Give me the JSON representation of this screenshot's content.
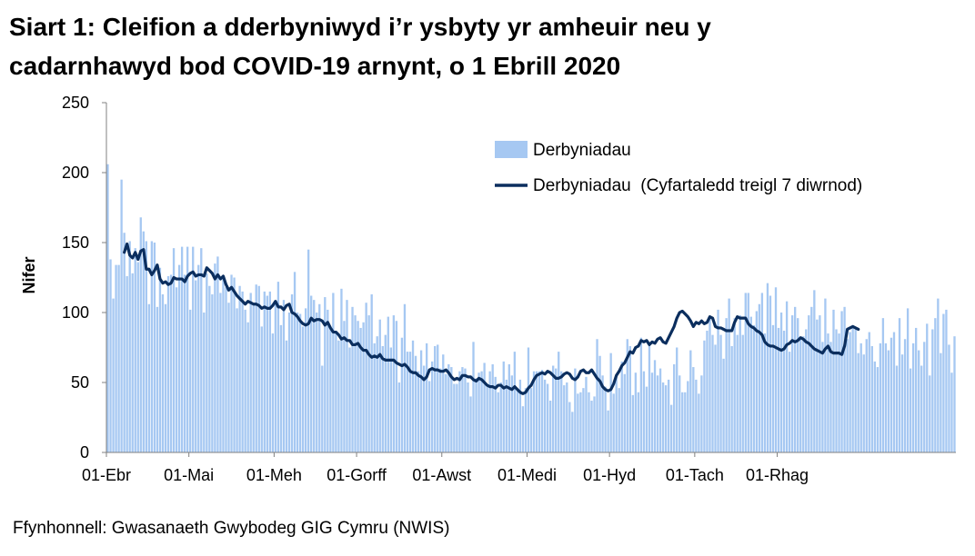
{
  "title": {
    "line1": "Siart 1: Cleifion a dderbyniwyd i’r ysbyty yr amheuir neu y",
    "line2": "cadarnhawyd bod COVID-19 arnynt, o 1 Ebrill 2020"
  },
  "source": "Ffynhonnell: Gwasanaeth Gwybodeg GIG Cymru (NWIS)",
  "chart_data": {
    "type": "bar",
    "title": "Siart 1: Cleifion a dderbyniwyd i’r ysbyty yr amheuir neu y cadarnhawyd bod COVID-19 arnynt, o 1 Ebrill 2020",
    "xlabel": "",
    "ylabel": "Nifer",
    "ylim": [
      0,
      250
    ],
    "yticks": [
      0,
      50,
      100,
      150,
      200,
      250
    ],
    "x_start": "2020-04-01",
    "x_end": "2020-12-29",
    "xtick_labels": [
      {
        "date": "2020-04-01",
        "label": "01-Ebr"
      },
      {
        "date": "2020-05-01",
        "label": "01-Mai"
      },
      {
        "date": "2020-06-01",
        "label": "01-Meh"
      },
      {
        "date": "2020-07-01",
        "label": "01-Gorff"
      },
      {
        "date": "2020-08-01",
        "label": "01-Awst"
      },
      {
        "date": "2020-09-01",
        "label": "01-Medi"
      },
      {
        "date": "2020-10-01",
        "label": "01-Hyd"
      },
      {
        "date": "2020-11-01",
        "label": "01-Tach"
      },
      {
        "date": "2020-12-01",
        "label": "01-Rhag"
      }
    ],
    "grid": false,
    "legend_position": "top-right",
    "series": [
      {
        "name": "Derbyniadau",
        "kind": "bar",
        "color": "#A6C8F2",
        "values": [
          206,
          138,
          110,
          134,
          134,
          195,
          157,
          126,
          151,
          128,
          146,
          136,
          168,
          158,
          151,
          106,
          151,
          150,
          104,
          132,
          113,
          106,
          126,
          127,
          146,
          118,
          134,
          147,
          127,
          147,
          102,
          147,
          123,
          134,
          146,
          100,
          128,
          119,
          113,
          135,
          140,
          114,
          126,
          118,
          107,
          127,
          125,
          103,
          119,
          115,
          102,
          93,
          114,
          107,
          120,
          119,
          90,
          115,
          112,
          115,
          85,
          108,
          122,
          91,
          109,
          80,
          100,
          113,
          129,
          100,
          99,
          90,
          103,
          145,
          112,
          109,
          100,
          106,
          62,
          111,
          102,
          90,
          114,
          87,
          80,
          117,
          94,
          109,
          75,
          104,
          98,
          94,
          89,
          93,
          107,
          98,
          113,
          78,
          83,
          95,
          76,
          84,
          97,
          75,
          98,
          94,
          50,
          82,
          106,
          72,
          72,
          80,
          69,
          58,
          73,
          62,
          78,
          51,
          65,
          76,
          77,
          60,
          70,
          56,
          63,
          61,
          49,
          49,
          58,
          61,
          60,
          50,
          40,
          79,
          53,
          57,
          58,
          64,
          47,
          58,
          63,
          54,
          43,
          50,
          65,
          52,
          63,
          55,
          72,
          45,
          52,
          33,
          46,
          75,
          46,
          58,
          58,
          58,
          59,
          52,
          49,
          37,
          62,
          60,
          72,
          58,
          48,
          50,
          36,
          29,
          60,
          42,
          43,
          46,
          54,
          43,
          37,
          40,
          81,
          69,
          55,
          47,
          30,
          71,
          42,
          55,
          46,
          65,
          56,
          81,
          76,
          41,
          57,
          43,
          82,
          58,
          47,
          76,
          57,
          66,
          55,
          60,
          50,
          48,
          52,
          34,
          63,
          75,
          55,
          43,
          43,
          51,
          73,
          61,
          52,
          42,
          55,
          80,
          87,
          96,
          84,
          77,
          102,
          84,
          67,
          96,
          110,
          76,
          96,
          84,
          98,
          84,
          114,
          114,
          97,
          91,
          101,
          106,
          114,
          85,
          121,
          112,
          91,
          118,
          89,
          100,
          87,
          108,
          72,
          98,
          104,
          96,
          82,
          83,
          88,
          98,
          104,
          116,
          95,
          98,
          79,
          110,
          85,
          79,
          102,
          88,
          85,
          101,
          104,
          81,
          86,
          91,
          88,
          71,
          78,
          70,
          81,
          86,
          76,
          65,
          61,
          78,
          96,
          78,
          73,
          82,
          86,
          62,
          96,
          70,
          81,
          103,
          60,
          78,
          89,
          73,
          62,
          79,
          92,
          55,
          88,
          96,
          110,
          71,
          99,
          102,
          77,
          57,
          83
        ]
      },
      {
        "name": "Derbyniadau  (Cyfartaledd treigl 7 diwrnod)",
        "kind": "line",
        "color": "#0B2E5E",
        "start_index": 6,
        "values": [
          143,
          149,
          141,
          139,
          143,
          138,
          144,
          145,
          131,
          131,
          127,
          130,
          134,
          124,
          121,
          122,
          120,
          121,
          125,
          124,
          124,
          124,
          122,
          126,
          128,
          129,
          126,
          127,
          127,
          126,
          132,
          130,
          128,
          124,
          127,
          124,
          126,
          120,
          116,
          118,
          115,
          112,
          110,
          108,
          106,
          108,
          107,
          106,
          106,
          105,
          103,
          104,
          103,
          103,
          105,
          108,
          104,
          104,
          102,
          105,
          106,
          100,
          99,
          97,
          94,
          92,
          91,
          92,
          96,
          94,
          95,
          95,
          94,
          91,
          93,
          89,
          86,
          86,
          84,
          81,
          82,
          80,
          80,
          77,
          77,
          78,
          75,
          73,
          73,
          70,
          68,
          69,
          68,
          70,
          67,
          66,
          66,
          66,
          66,
          64,
          63,
          62,
          63,
          61,
          58,
          57,
          57,
          55,
          54,
          52,
          54,
          59,
          60,
          59,
          59,
          58,
          58,
          59,
          57,
          54,
          52,
          53,
          52,
          55,
          55,
          54,
          54,
          52,
          51,
          53,
          52,
          50,
          48,
          47,
          47,
          46,
          48,
          48,
          46,
          47,
          46,
          45,
          47,
          45,
          43,
          42,
          43,
          46,
          48,
          52,
          55,
          56,
          57,
          56,
          58,
          57,
          55,
          53,
          53,
          54,
          56,
          57,
          56,
          53,
          52,
          54,
          58,
          59,
          57,
          57,
          59,
          56,
          53,
          51,
          47,
          45,
          44,
          45,
          49,
          55,
          58,
          62,
          64,
          68,
          72,
          71,
          75,
          76,
          80,
          79,
          80,
          77,
          79,
          78,
          81,
          82,
          79,
          78,
          82,
          86,
          90,
          96,
          100,
          101,
          99,
          97,
          94,
          90,
          93,
          92,
          94,
          92,
          93,
          97,
          96,
          90,
          89,
          89,
          88,
          87,
          87,
          87,
          93,
          97,
          96,
          96,
          96,
          92,
          90,
          89,
          87,
          86,
          84,
          79,
          77,
          76,
          76,
          75,
          74,
          73,
          74,
          77,
          78,
          80,
          79,
          80,
          82,
          81,
          79,
          78,
          76,
          74,
          73,
          72,
          71,
          74,
          76,
          72,
          71,
          71,
          71,
          70,
          76,
          88,
          89,
          90,
          89,
          88
        ]
      }
    ]
  }
}
